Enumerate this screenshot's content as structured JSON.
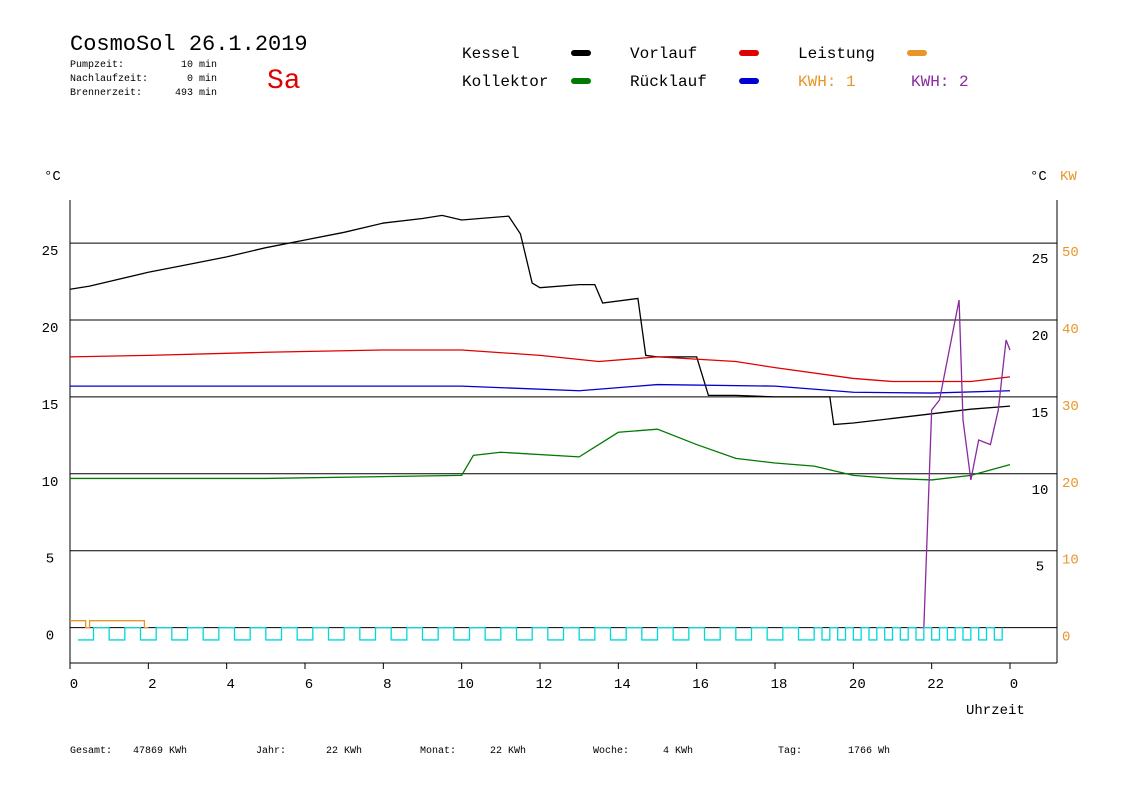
{
  "chart_data": {
    "type": "line",
    "title": "CosmoSol 26.1.2019",
    "day": "Sa",
    "stats": [
      {
        "label": "Pumpzeit:",
        "value": "10 min"
      },
      {
        "label": "Nachlaufzeit:",
        "value": "0 min"
      },
      {
        "label": "Brennerzeit:",
        "value": "493 min"
      }
    ],
    "kwh_labels": [
      {
        "text": "KWH: 1",
        "color": "#e8962a"
      },
      {
        "text": "KWH: 2",
        "color": "#8a2aa0"
      }
    ],
    "y_unit": "°C",
    "y_unit_right": "°C",
    "y2_unit": "KW",
    "xlabel": "Uhrzeit",
    "xlim": [
      0,
      25.2
    ],
    "xticks": [
      0,
      2,
      4,
      6,
      8,
      10,
      12,
      14,
      16,
      18,
      20,
      22,
      {
        "value": 24,
        "label": "0"
      }
    ],
    "ylim": [
      -2.3,
      27.8
    ],
    "yticks": [
      0,
      5,
      10,
      15,
      20,
      25
    ],
    "yticks_right": [
      5,
      10,
      15,
      20,
      25
    ],
    "y2lim": [
      -4.6,
      55.6
    ],
    "y2ticks": [
      0,
      10,
      20,
      30,
      40,
      50
    ],
    "grid": true,
    "series": [
      {
        "name": "Kessel",
        "color": "#000000",
        "x": [
          0,
          0.5,
          1,
          2,
          3,
          4,
          5,
          6,
          7,
          8,
          9,
          9.5,
          10,
          11.2,
          11.5,
          11.8,
          12,
          13,
          13.4,
          13.6,
          14.5,
          14.7,
          15,
          16,
          16.3,
          17,
          18,
          19.4,
          19.5,
          20,
          21,
          22,
          23,
          24
        ],
        "values": [
          22.0,
          22.2,
          22.5,
          23.1,
          23.6,
          24.1,
          24.7,
          25.2,
          25.7,
          26.3,
          26.6,
          26.8,
          26.5,
          26.75,
          25.6,
          22.4,
          22.1,
          22.3,
          22.3,
          21.1,
          21.4,
          17.7,
          17.6,
          17.6,
          15.1,
          15.1,
          15.0,
          15.0,
          13.2,
          13.3,
          13.6,
          13.9,
          14.2,
          14.4
        ]
      },
      {
        "name": "Vorlauf",
        "color": "#e00000",
        "x": [
          0,
          2,
          5,
          8,
          10,
          12,
          13.5,
          15,
          17,
          18,
          20,
          21,
          23,
          24
        ],
        "values": [
          17.6,
          17.7,
          17.9,
          18.05,
          18.05,
          17.7,
          17.3,
          17.6,
          17.3,
          16.9,
          16.2,
          16.0,
          16.0,
          16.3
        ]
      },
      {
        "name": "Leistung",
        "color": "#e8962a",
        "axis": "y2",
        "step": true,
        "x": [
          0,
          0.4,
          0.5,
          1.9,
          2
        ],
        "values": [
          0.9,
          0,
          0.9,
          0,
          0
        ]
      },
      {
        "name": "Kollektor",
        "color": "#007a00",
        "x": [
          0,
          5,
          10,
          10.3,
          11,
          13,
          14,
          15,
          16,
          17,
          18,
          19,
          20,
          21,
          22,
          23,
          24
        ],
        "values": [
          9.7,
          9.7,
          9.9,
          11.2,
          11.4,
          11.1,
          12.7,
          12.9,
          11.9,
          11.0,
          10.7,
          10.5,
          9.9,
          9.7,
          9.6,
          9.9,
          10.6
        ]
      },
      {
        "name": "Rücklauf",
        "color": "#0000d0",
        "x": [
          0,
          5,
          10,
          13,
          15,
          18,
          20,
          22,
          24
        ],
        "values": [
          15.7,
          15.7,
          15.7,
          15.4,
          15.8,
          15.7,
          15.3,
          15.25,
          15.4
        ]
      },
      {
        "color": "#8a2aa0",
        "axis": "y2",
        "x": [
          21.7,
          21.8,
          22.0,
          22.2,
          22.5,
          22.7,
          22.8,
          23.0,
          23.2,
          23.5,
          23.7,
          23.9,
          24
        ],
        "values": [
          0,
          0,
          28.3,
          29.6,
          37.4,
          42.6,
          27.0,
          19.2,
          24.4,
          23.8,
          28.3,
          37.4,
          36.1
        ]
      },
      {
        "color": "#00d8d8",
        "axis": "y2",
        "step": true,
        "x": [
          0.2,
          0.6,
          1.0,
          1.4,
          1.8,
          2.2,
          2.6,
          3.0,
          3.4,
          3.8,
          4.2,
          4.6,
          5.0,
          5.4,
          5.8,
          6.2,
          6.6,
          7.0,
          7.4,
          7.8,
          8.2,
          8.6,
          9.0,
          9.4,
          9.8,
          10.2,
          10.6,
          11.0,
          11.4,
          11.8,
          12.2,
          12.6,
          13.0,
          13.4,
          13.8,
          14.2,
          14.6,
          15.0,
          15.4,
          15.8,
          16.2,
          16.6,
          17.0,
          17.4,
          17.8,
          18.2,
          18.6,
          19.0,
          19.2,
          19.4,
          19.6,
          19.8,
          20,
          20.2,
          20.4,
          20.6,
          20.8,
          21,
          21.2,
          21.4,
          21.6,
          21.8,
          22,
          22.2,
          22.4,
          22.6,
          22.8,
          23,
          23.2,
          23.4,
          23.6,
          23.8
        ],
        "values": [
          -1.6,
          0,
          -1.6,
          0,
          -1.6,
          0,
          -1.6,
          0,
          -1.6,
          0,
          -1.6,
          0,
          -1.6,
          0,
          -1.6,
          0,
          -1.6,
          0,
          -1.6,
          0,
          -1.6,
          0,
          -1.6,
          0,
          -1.6,
          0,
          -1.6,
          0,
          -1.6,
          0,
          -1.6,
          0,
          -1.6,
          0,
          -1.6,
          0,
          -1.6,
          0,
          -1.6,
          0,
          -1.6,
          0,
          -1.6,
          0,
          -1.6,
          0,
          -1.6,
          0,
          -1.6,
          0,
          -1.6,
          0,
          -1.6,
          0,
          -1.6,
          0,
          -1.6,
          0,
          -1.6,
          0,
          -1.6,
          0,
          -1.6,
          0,
          -1.6,
          0,
          -1.6,
          0,
          -1.6,
          0,
          -1.6,
          0
        ]
      }
    ],
    "footer": [
      {
        "label": "Gesamt:",
        "value": "47869 KWh"
      },
      {
        "label": "Jahr:",
        "value": "22 KWh"
      },
      {
        "label": "Monat:",
        "value": "22 KWh"
      },
      {
        "label": "Woche:",
        "value": "4 KWh"
      },
      {
        "label": "Tag:",
        "value": "1766 Wh"
      }
    ]
  }
}
